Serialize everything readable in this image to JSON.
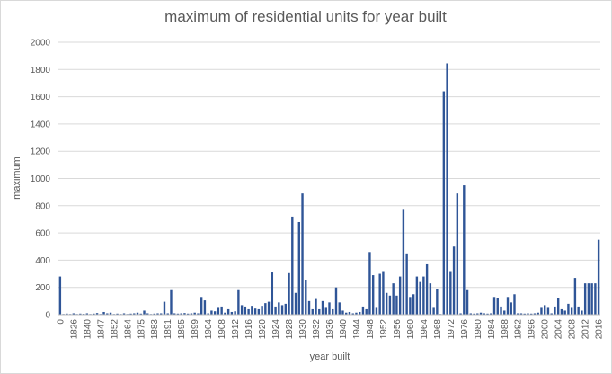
{
  "chart_data": {
    "type": "bar",
    "title": "maximum of residential units for year built",
    "x_label": "year built",
    "y_label": "maximum",
    "color": "#2f5597",
    "grid": true,
    "ylim": [
      0,
      2000
    ],
    "yticks": [
      0,
      200,
      400,
      600,
      800,
      1000,
      1200,
      1400,
      1600,
      1800,
      2000
    ],
    "categories": [
      "0",
      null,
      null,
      null,
      "1826",
      null,
      null,
      null,
      "1840",
      null,
      null,
      null,
      "1847",
      null,
      null,
      null,
      "1852",
      null,
      null,
      null,
      "1864",
      null,
      null,
      null,
      "1875",
      null,
      null,
      null,
      "1883",
      null,
      null,
      null,
      "1891",
      null,
      null,
      null,
      "1895",
      null,
      null,
      null,
      "1899",
      null,
      null,
      null,
      "1904",
      null,
      null,
      null,
      "1908",
      null,
      null,
      null,
      "1912",
      null,
      null,
      null,
      "1916",
      null,
      null,
      null,
      "1920",
      null,
      null,
      null,
      "1924",
      null,
      null,
      null,
      "1928",
      null,
      null,
      null,
      "1930",
      null,
      null,
      null,
      "1932",
      null,
      null,
      null,
      "1936",
      null,
      null,
      null,
      "1940",
      null,
      null,
      null,
      "1944",
      null,
      null,
      null,
      "1948",
      null,
      null,
      null,
      "1952",
      null,
      null,
      null,
      "1956",
      null,
      null,
      null,
      "1960",
      null,
      null,
      null,
      "1964",
      null,
      null,
      null,
      "1968",
      null,
      null,
      null,
      "1972",
      null,
      null,
      null,
      "1976",
      null,
      null,
      null,
      "1980",
      null,
      null,
      null,
      "1984",
      null,
      null,
      null,
      "1988",
      null,
      null,
      null,
      "1992",
      null,
      null,
      null,
      "1996",
      null,
      null,
      null,
      "2000",
      null,
      null,
      null,
      "2004",
      null,
      null,
      null,
      "2008",
      null,
      null,
      null,
      "2012",
      null,
      null,
      null,
      "2016"
    ],
    "values": [
      280,
      5,
      8,
      5,
      10,
      5,
      8,
      6,
      10,
      5,
      8,
      12,
      5,
      20,
      10,
      15,
      5,
      8,
      5,
      10,
      5,
      8,
      10,
      15,
      8,
      30,
      10,
      5,
      8,
      10,
      10,
      95,
      10,
      180,
      10,
      8,
      10,
      12,
      8,
      10,
      15,
      10,
      130,
      105,
      10,
      30,
      25,
      50,
      60,
      15,
      40,
      20,
      25,
      180,
      70,
      60,
      40,
      65,
      45,
      40,
      65,
      85,
      95,
      310,
      60,
      90,
      70,
      80,
      305,
      720,
      160,
      680,
      890,
      255,
      100,
      40,
      115,
      40,
      100,
      50,
      90,
      40,
      200,
      90,
      30,
      15,
      20,
      10,
      15,
      20,
      60,
      40,
      460,
      290,
      50,
      300,
      320,
      160,
      140,
      230,
      140,
      280,
      770,
      450,
      130,
      150,
      280,
      240,
      280,
      370,
      230,
      50,
      185,
      5,
      1640,
      1845,
      320,
      500,
      890,
      10,
      950,
      180,
      10,
      8,
      10,
      15,
      10,
      8,
      10,
      130,
      120,
      60,
      30,
      130,
      90,
      150,
      10,
      10,
      8,
      10,
      8,
      10,
      15,
      50,
      70,
      50,
      10,
      60,
      120,
      40,
      30,
      80,
      50,
      270,
      60,
      30,
      230,
      230,
      230,
      230,
      550
    ]
  }
}
